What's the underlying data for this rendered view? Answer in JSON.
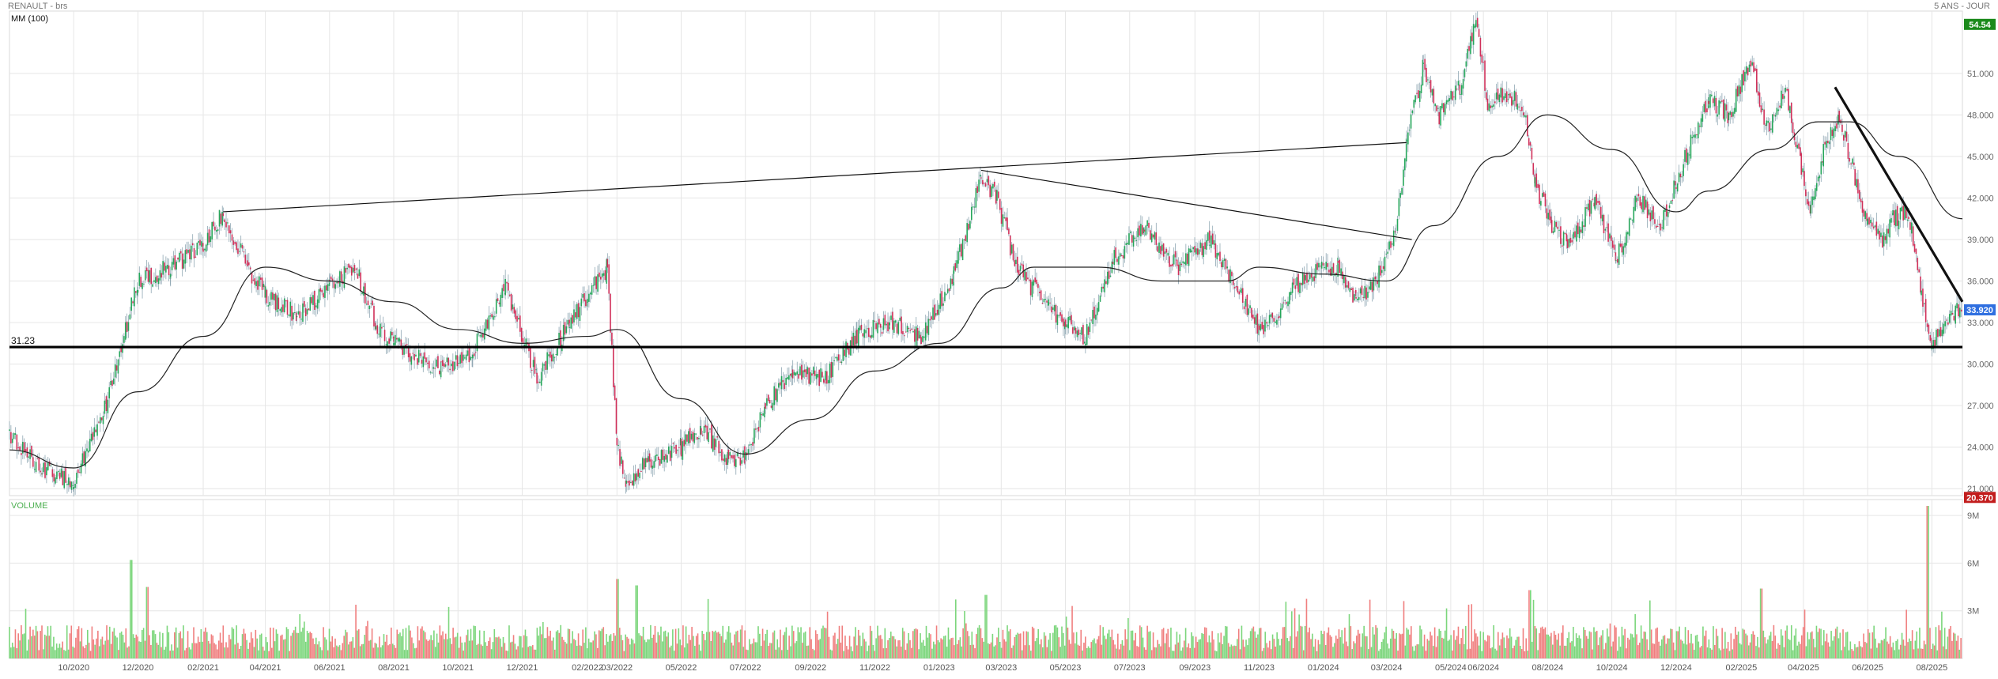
{
  "header": {
    "symbol": "RENAULT - brs",
    "period": "5 ANS - JOUR"
  },
  "indicator": {
    "label": "MM (100)"
  },
  "volume": {
    "label": "VOLUME"
  },
  "colors": {
    "up": "#26a65b",
    "down": "#d0305a",
    "grid": "#e6e6e6",
    "ma": "#222222",
    "volume_up": "#7cd67c",
    "volume_down": "#f07f7f",
    "badge_high": "#1b8a1b",
    "badge_last": "#2f6fe0",
    "badge_low": "#c21d1d"
  },
  "chart_data": [
    {
      "type": "candlestick",
      "title": "RENAULT - brs",
      "subtitle": "5 ANS - JOUR",
      "x_ticks": [
        "10/2020",
        "12/2020",
        "02/2021",
        "04/2021",
        "06/2021",
        "08/2021",
        "10/2021",
        "12/2021",
        "02/2022",
        "03/2022",
        "05/2022",
        "07/2022",
        "09/2022",
        "11/2022",
        "01/2023",
        "03/2023",
        "05/2023",
        "07/2023",
        "09/2023",
        "11/2023",
        "01/2024",
        "03/2024",
        "05/2024",
        "06/2024",
        "08/2024",
        "10/2024",
        "12/2024",
        "02/2025",
        "04/2025",
        "06/2025",
        "08/2025"
      ],
      "y_ticks": [
        "21.000",
        "24.000",
        "27.000",
        "30.000",
        "33.000",
        "36.000",
        "39.000",
        "42.000",
        "45.000",
        "48.000",
        "51.000"
      ],
      "ylim": [
        20.5,
        55.5
      ],
      "price_path": [
        [
          "2020-08-01",
          25.0
        ],
        [
          "2020-09-01",
          22.5
        ],
        [
          "2020-10-01",
          21.5
        ],
        [
          "2020-11-01",
          27.0
        ],
        [
          "2020-12-01",
          36.0
        ],
        [
          "2021-01-01",
          37.0
        ],
        [
          "2021-02-01",
          38.5
        ],
        [
          "2021-02-20",
          41.0
        ],
        [
          "2021-03-15",
          37.0
        ],
        [
          "2021-04-01",
          35.0
        ],
        [
          "2021-05-01",
          33.5
        ],
        [
          "2021-06-01",
          35.5
        ],
        [
          "2021-06-25",
          37.0
        ],
        [
          "2021-07-15",
          33.0
        ],
        [
          "2021-08-01",
          31.5
        ],
        [
          "2021-09-15",
          29.5
        ],
        [
          "2021-10-15",
          31.0
        ],
        [
          "2021-11-15",
          35.5
        ],
        [
          "2021-12-15",
          29.0
        ],
        [
          "2022-01-15",
          33.0
        ],
        [
          "2022-02-01",
          35.0
        ],
        [
          "2022-02-20",
          37.0
        ],
        [
          "2022-03-01",
          24.0
        ],
        [
          "2022-03-10",
          21.5
        ],
        [
          "2022-04-01",
          23.0
        ],
        [
          "2022-05-01",
          24.0
        ],
        [
          "2022-05-20",
          25.5
        ],
        [
          "2022-06-15",
          23.0
        ],
        [
          "2022-07-01",
          23.5
        ],
        [
          "2022-07-20",
          27.0
        ],
        [
          "2022-08-15",
          29.5
        ],
        [
          "2022-09-15",
          29.0
        ],
        [
          "2022-10-15",
          32.0
        ],
        [
          "2022-11-15",
          33.0
        ],
        [
          "2022-12-15",
          32.0
        ],
        [
          "2023-01-15",
          36.5
        ],
        [
          "2023-02-10",
          43.5
        ],
        [
          "2023-02-25",
          42.0
        ],
        [
          "2023-03-15",
          37.0
        ],
        [
          "2023-04-15",
          34.0
        ],
        [
          "2023-05-01",
          33.0
        ],
        [
          "2023-05-20",
          32.0
        ],
        [
          "2023-06-15",
          37.5
        ],
        [
          "2023-07-15",
          40.0
        ],
        [
          "2023-08-15",
          37.0
        ],
        [
          "2023-09-15",
          39.0
        ],
        [
          "2023-10-15",
          35.0
        ],
        [
          "2023-11-01",
          32.5
        ],
        [
          "2023-11-20",
          34.0
        ],
        [
          "2023-12-15",
          36.5
        ],
        [
          "2024-01-15",
          37.0
        ],
        [
          "2024-02-01",
          34.5
        ],
        [
          "2024-02-20",
          36.0
        ],
        [
          "2024-03-10",
          40.0
        ],
        [
          "2024-03-20",
          46.0
        ],
        [
          "2024-04-05",
          51.5
        ],
        [
          "2024-04-20",
          48.0
        ],
        [
          "2024-05-10",
          50.0
        ],
        [
          "2024-05-25",
          55.0
        ],
        [
          "2024-06-05",
          49.0
        ],
        [
          "2024-06-25",
          49.5
        ],
        [
          "2024-07-10",
          48.5
        ],
        [
          "2024-07-20",
          43.0
        ],
        [
          "2024-08-05",
          40.0
        ],
        [
          "2024-08-20",
          38.5
        ],
        [
          "2024-09-15",
          42.0
        ],
        [
          "2024-10-05",
          37.5
        ],
        [
          "2024-10-25",
          42.0
        ],
        [
          "2024-11-15",
          40.0
        ],
        [
          "2024-12-01",
          43.0
        ],
        [
          "2024-12-15",
          46.0
        ],
        [
          "2025-01-01",
          49.0
        ],
        [
          "2025-01-20",
          48.0
        ],
        [
          "2025-02-10",
          52.0
        ],
        [
          "2025-02-25",
          47.0
        ],
        [
          "2025-03-15",
          50.0
        ],
        [
          "2025-03-30",
          44.0
        ],
        [
          "2025-04-08",
          41.0
        ],
        [
          "2025-04-20",
          45.5
        ],
        [
          "2025-05-05",
          48.0
        ],
        [
          "2025-05-20",
          43.5
        ],
        [
          "2025-06-01",
          40.0
        ],
        [
          "2025-06-15",
          39.0
        ],
        [
          "2025-06-25",
          40.5
        ],
        [
          "2025-07-10",
          41.0
        ],
        [
          "2025-07-22",
          35.0
        ],
        [
          "2025-08-01",
          31.5
        ],
        [
          "2025-08-15",
          33.5
        ],
        [
          "2025-08-30",
          33.9
        ]
      ],
      "moving_average": {
        "label": "MM (100)",
        "path": [
          [
            "2020-08-01",
            23.8
          ],
          [
            "2020-10-01",
            22.5
          ],
          [
            "2020-12-01",
            28.0
          ],
          [
            "2021-02-01",
            32.0
          ],
          [
            "2021-04-01",
            37.0
          ],
          [
            "2021-06-01",
            36.0
          ],
          [
            "2021-08-01",
            34.5
          ],
          [
            "2021-10-01",
            32.5
          ],
          [
            "2021-12-01",
            31.5
          ],
          [
            "2022-02-01",
            32.0
          ],
          [
            "2022-03-01",
            32.5
          ],
          [
            "2022-05-01",
            27.5
          ],
          [
            "2022-07-01",
            23.5
          ],
          [
            "2022-09-01",
            26.0
          ],
          [
            "2022-11-01",
            29.5
          ],
          [
            "2023-01-01",
            31.5
          ],
          [
            "2023-03-01",
            35.5
          ],
          [
            "2023-04-01",
            37.0
          ],
          [
            "2023-06-01",
            37.0
          ],
          [
            "2023-08-01",
            36.0
          ],
          [
            "2023-10-01",
            36.0
          ],
          [
            "2023-11-01",
            37.0
          ],
          [
            "2024-01-01",
            36.5
          ],
          [
            "2024-03-01",
            36.0
          ],
          [
            "2024-04-15",
            40.0
          ],
          [
            "2024-06-15",
            45.0
          ],
          [
            "2024-08-01",
            48.0
          ],
          [
            "2024-10-01",
            45.5
          ],
          [
            "2024-12-01",
            41.0
          ],
          [
            "2025-01-01",
            42.5
          ],
          [
            "2025-03-01",
            45.5
          ],
          [
            "2025-04-15",
            47.5
          ],
          [
            "2025-05-15",
            47.5
          ],
          [
            "2025-07-01",
            45.0
          ],
          [
            "2025-08-30",
            40.5
          ]
        ]
      },
      "trendlines": [
        {
          "from": [
            "2021-02-20",
            41.0
          ],
          "to": [
            "2024-03-20",
            46.0
          ],
          "width": 1.2
        },
        {
          "from": [
            "2023-02-10",
            44.0
          ],
          "to": [
            "2024-03-25",
            39.0
          ],
          "width": 1.2
        },
        {
          "from": [
            "2025-05-01",
            50.0
          ],
          "to": [
            "2025-08-30",
            34.5
          ],
          "width": 3.2
        }
      ],
      "horizontal_line": {
        "value": 31.23,
        "label": "31.23"
      },
      "badges": [
        {
          "label": "54.54",
          "value": 54.54,
          "color_key": "badge_high"
        },
        {
          "label": "33.920",
          "value": 33.92,
          "color_key": "badge_last"
        },
        {
          "label": "20.370",
          "value": 20.37,
          "color_key": "badge_low"
        }
      ]
    },
    {
      "type": "bar",
      "title": "VOLUME",
      "y_ticks": [
        "3M",
        "6M",
        "9M"
      ],
      "ylim": [
        0,
        10
      ],
      "unit": "M",
      "baseline_level": 1.5,
      "spikes": [
        {
          "date": "2020-11-25",
          "value": 6.2
        },
        {
          "date": "2020-12-10",
          "value": 4.5
        },
        {
          "date": "2022-03-01",
          "value": 5.0
        },
        {
          "date": "2022-03-20",
          "value": 4.6
        },
        {
          "date": "2023-02-15",
          "value": 4.0
        },
        {
          "date": "2024-07-15",
          "value": 4.3
        },
        {
          "date": "2025-02-20",
          "value": 4.4
        },
        {
          "date": "2025-07-28",
          "value": 9.6
        }
      ]
    }
  ]
}
